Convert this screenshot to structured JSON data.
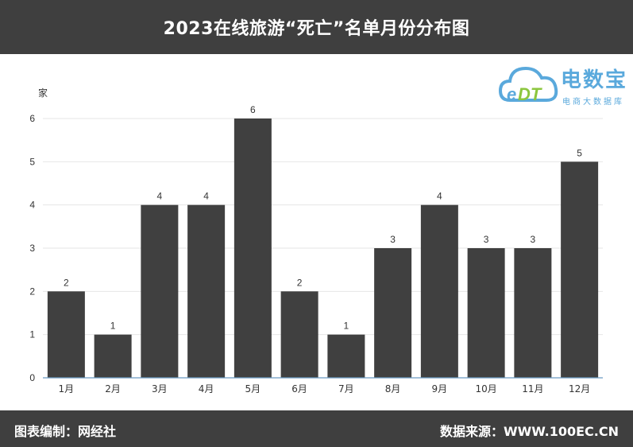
{
  "header": {
    "title": "2023在线旅游“死亡”名单月份分布图"
  },
  "footer": {
    "left": "图表编制：网经社",
    "right": "数据来源：WWW.100EC.CN"
  },
  "logo": {
    "main": "电数宝",
    "sub": "电商大数据库",
    "mark": "eDT",
    "colors": {
      "blue": "#5aa9dc",
      "green": "#8cc63f"
    }
  },
  "chart_data": {
    "type": "bar",
    "title": "2023在线旅游“死亡”名单月份分布图",
    "ylabel": "家",
    "xlabel": "",
    "categories": [
      "1月",
      "2月",
      "3月",
      "4月",
      "5月",
      "6月",
      "7月",
      "8月",
      "9月",
      "10月",
      "11月",
      "12月"
    ],
    "values": [
      2,
      1,
      4,
      4,
      6,
      2,
      1,
      3,
      4,
      3,
      3,
      5
    ],
    "ylim": [
      0,
      6
    ],
    "yticks": [
      0,
      1,
      2,
      3,
      4,
      5,
      6
    ],
    "grid": true,
    "bar_color": "#404040",
    "axis_color": "#6a9bc3"
  }
}
